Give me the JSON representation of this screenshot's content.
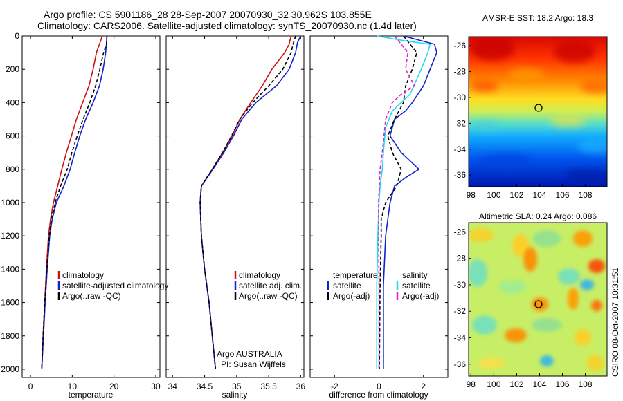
{
  "header": {
    "line1": "Argo profile: CS 5901186_28 28-Sep-2007 20070930_32 30.962S 103.855E",
    "line2": "Climatology: CARS2006. Satellite-adjusted climatology: synTS_20070930.nc (1.4d later)"
  },
  "credit": "CSIRO 08-Oct-2007 10:31:51",
  "colors": {
    "climatology": "#cc1111",
    "satellite": "#1122cc",
    "argo": "#000000",
    "salinity_satellite": "#22ddee",
    "salinity_argo": "#dd22cc"
  },
  "chart_data": [
    {
      "type": "line",
      "panel": "temperature",
      "xlabel": "temperature",
      "ylabel": "",
      "xlim": [
        -2,
        31
      ],
      "ylim": [
        0,
        2050
      ],
      "y_reversed": true,
      "xticks": [
        0,
        10,
        20,
        30
      ],
      "yticks": [
        0,
        200,
        400,
        600,
        800,
        1000,
        1200,
        1400,
        1600,
        1800,
        2000
      ],
      "legend": [
        "climatology",
        "satellite-adjusted climatology",
        "Argo(..raw -QC)"
      ],
      "legend_location": "lower-right",
      "series": [
        {
          "name": "climatology",
          "color_key": "climatology",
          "dash": "",
          "points": [
            [
              17.2,
              0
            ],
            [
              16.5,
              50
            ],
            [
              15.8,
              100
            ],
            [
              15.0,
              200
            ],
            [
              14.0,
              300
            ],
            [
              12.5,
              400
            ],
            [
              11.0,
              500
            ],
            [
              9.8,
              600
            ],
            [
              8.6,
              700
            ],
            [
              7.5,
              800
            ],
            [
              6.5,
              900
            ],
            [
              5.5,
              1000
            ],
            [
              4.8,
              1100
            ],
            [
              4.3,
              1200
            ],
            [
              3.8,
              1400
            ],
            [
              3.4,
              1600
            ],
            [
              3.0,
              1800
            ],
            [
              2.7,
              2000
            ]
          ]
        },
        {
          "name": "satellite-adjusted climatology",
          "color_key": "satellite",
          "dash": "",
          "points": [
            [
              18.3,
              0
            ],
            [
              18.2,
              50
            ],
            [
              18.0,
              100
            ],
            [
              17.4,
              200
            ],
            [
              16.5,
              300
            ],
            [
              15.0,
              400
            ],
            [
              13.2,
              500
            ],
            [
              11.8,
              600
            ],
            [
              10.6,
              700
            ],
            [
              9.5,
              800
            ],
            [
              8.0,
              900
            ],
            [
              6.2,
              1000
            ],
            [
              5.2,
              1100
            ],
            [
              4.6,
              1200
            ],
            [
              4.0,
              1400
            ],
            [
              3.5,
              1600
            ],
            [
              3.1,
              1800
            ],
            [
              2.7,
              2000
            ]
          ]
        },
        {
          "name": "Argo(..raw -QC)",
          "color_key": "argo",
          "dash": "5,3",
          "points": [
            [
              18.3,
              0
            ],
            [
              18.2,
              50
            ],
            [
              17.5,
              100
            ],
            [
              16.6,
              200
            ],
            [
              15.6,
              300
            ],
            [
              14.2,
              400
            ],
            [
              12.6,
              500
            ],
            [
              11.2,
              600
            ],
            [
              9.9,
              700
            ],
            [
              8.8,
              800
            ],
            [
              7.2,
              900
            ],
            [
              5.9,
              1000
            ],
            [
              5.0,
              1100
            ],
            [
              4.5,
              1200
            ],
            [
              3.9,
              1400
            ],
            [
              3.4,
              1600
            ],
            [
              3.0,
              1800
            ],
            [
              2.7,
              2000
            ]
          ]
        }
      ]
    },
    {
      "type": "line",
      "panel": "salinity",
      "xlabel": "salinity",
      "ylabel": "",
      "xlim": [
        33.9,
        36.05
      ],
      "ylim": [
        0,
        2050
      ],
      "y_reversed": true,
      "xticks": [
        34,
        34.5,
        35,
        35.5,
        36
      ],
      "legend": [
        "climatology",
        "satellite adj. clim.",
        "Argo(..raw -QC)"
      ],
      "legend_location": "lower-right",
      "annotation": [
        "Argo AUSTRALIA",
        "PI: Susan Wijffels"
      ],
      "series": [
        {
          "name": "climatology",
          "color_key": "climatology",
          "dash": "",
          "points": [
            [
              35.85,
              0
            ],
            [
              35.82,
              50
            ],
            [
              35.75,
              100
            ],
            [
              35.55,
              200
            ],
            [
              35.4,
              300
            ],
            [
              35.22,
              400
            ],
            [
              35.05,
              500
            ],
            [
              34.93,
              600
            ],
            [
              34.78,
              700
            ],
            [
              34.62,
              800
            ],
            [
              34.45,
              900
            ],
            [
              34.43,
              1000
            ],
            [
              34.45,
              1200
            ],
            [
              34.5,
              1400
            ],
            [
              34.57,
              1600
            ],
            [
              34.62,
              1800
            ],
            [
              34.67,
              2000
            ]
          ]
        },
        {
          "name": "satellite adj. clim.",
          "color_key": "satellite",
          "dash": "",
          "points": [
            [
              36.0,
              0
            ],
            [
              35.95,
              40
            ],
            [
              35.92,
              100
            ],
            [
              35.82,
              200
            ],
            [
              35.62,
              300
            ],
            [
              35.3,
              400
            ],
            [
              35.08,
              500
            ],
            [
              34.95,
              600
            ],
            [
              34.8,
              700
            ],
            [
              34.63,
              800
            ],
            [
              34.45,
              900
            ],
            [
              34.43,
              1000
            ],
            [
              34.45,
              1200
            ],
            [
              34.5,
              1400
            ],
            [
              34.57,
              1600
            ],
            [
              34.62,
              1800
            ],
            [
              34.67,
              2000
            ]
          ]
        },
        {
          "name": "Argo(..raw -QC)",
          "color_key": "argo",
          "dash": "5,3",
          "points": [
            [
              35.92,
              0
            ],
            [
              35.88,
              50
            ],
            [
              35.85,
              100
            ],
            [
              35.72,
              200
            ],
            [
              35.5,
              300
            ],
            [
              35.25,
              400
            ],
            [
              35.05,
              500
            ],
            [
              34.92,
              600
            ],
            [
              34.78,
              700
            ],
            [
              34.62,
              800
            ],
            [
              34.45,
              900
            ],
            [
              34.43,
              1000
            ],
            [
              34.45,
              1200
            ],
            [
              34.5,
              1400
            ],
            [
              34.57,
              1600
            ],
            [
              34.62,
              1800
            ],
            [
              34.67,
              2000
            ]
          ]
        }
      ]
    },
    {
      "type": "line",
      "panel": "difference",
      "xlabel": "difference from climatology",
      "ylabel": "",
      "xlim": [
        -3.1,
        3.1
      ],
      "ylim": [
        0,
        2050
      ],
      "y_reversed": true,
      "xticks": [
        -2,
        0,
        2
      ],
      "legend_left_title": "temperature",
      "legend_right_title": "salinity",
      "legend_left": [
        "satellite",
        "Argo(-adj)"
      ],
      "legend_right": [
        "satellite",
        "Argo(-adj)"
      ],
      "legend_location": "lower",
      "series": [
        {
          "name": "temperature satellite",
          "color_key": "satellite",
          "dash": "",
          "points": [
            [
              1.1,
              0
            ],
            [
              2.5,
              50
            ],
            [
              2.6,
              100
            ],
            [
              2.3,
              200
            ],
            [
              2.0,
              300
            ],
            [
              1.5,
              400
            ],
            [
              1.2,
              450
            ],
            [
              0.7,
              500
            ],
            [
              0.5,
              600
            ],
            [
              1.0,
              700
            ],
            [
              1.8,
              800
            ],
            [
              1.2,
              850
            ],
            [
              0.7,
              900
            ],
            [
              0.5,
              1000
            ],
            [
              0.3,
              1200
            ],
            [
              0.2,
              1500
            ],
            [
              0.2,
              2000
            ]
          ]
        },
        {
          "name": "temperature Argo(-adj)",
          "color_key": "argo",
          "dash": "5,3",
          "points": [
            [
              1.1,
              0
            ],
            [
              1.7,
              100
            ],
            [
              1.5,
              200
            ],
            [
              1.2,
              300
            ],
            [
              1.1,
              400
            ],
            [
              0.7,
              500
            ],
            [
              0.4,
              600
            ],
            [
              0.6,
              700
            ],
            [
              1.0,
              800
            ],
            [
              0.8,
              900
            ],
            [
              0.3,
              1000
            ],
            [
              0.1,
              1100
            ],
            [
              0.1,
              1200
            ],
            [
              0.05,
              1500
            ],
            [
              0.02,
              2000
            ]
          ]
        },
        {
          "name": "salinity satellite",
          "color_key": "salinity_satellite",
          "dash": "",
          "points": [
            [
              -0.1,
              0
            ],
            [
              1.2,
              30
            ],
            [
              2.3,
              50
            ],
            [
              2.2,
              100
            ],
            [
              1.9,
              200
            ],
            [
              1.4,
              350
            ],
            [
              1.0,
              400
            ],
            [
              0.6,
              450
            ],
            [
              0.3,
              550
            ],
            [
              0.2,
              700
            ],
            [
              0.15,
              800
            ],
            [
              0.05,
              900
            ],
            [
              0.0,
              1000
            ],
            [
              -0.05,
              1200
            ],
            [
              -0.1,
              1500
            ],
            [
              -0.1,
              1800
            ],
            [
              -0.1,
              2000
            ]
          ]
        },
        {
          "name": "salinity Argo(-adj)",
          "color_key": "salinity_argo",
          "dash": "5,3",
          "points": [
            [
              0.7,
              0
            ],
            [
              1.3,
              100
            ],
            [
              1.2,
              200
            ],
            [
              1.6,
              300
            ],
            [
              1.0,
              350
            ],
            [
              0.6,
              400
            ],
            [
              0.3,
              500
            ],
            [
              0.15,
              700
            ],
            [
              0.05,
              800
            ],
            [
              -0.02,
              1000
            ],
            [
              0.0,
              1500
            ],
            [
              0.0,
              2000
            ]
          ]
        }
      ]
    },
    {
      "type": "heatmap",
      "panel": "sst",
      "title": "AMSR-E SST: 18.2 Argo: 18.3",
      "xlim": [
        97.8,
        109.9
      ],
      "ylim": [
        -36.9,
        -25.3
      ],
      "xticks": [
        98,
        100,
        102,
        104,
        106,
        108
      ],
      "yticks": [
        -26,
        -28,
        -30,
        -32,
        -34,
        -36
      ],
      "marker": [
        103.855,
        -30.962
      ]
    },
    {
      "type": "heatmap",
      "panel": "sla",
      "title": "Altimetric SLA: 0.24 Argo: 0.086",
      "xlim": [
        97.8,
        109.9
      ],
      "ylim": [
        -36.9,
        -25.3
      ],
      "xticks": [
        98,
        100,
        102,
        104,
        106,
        108
      ],
      "yticks": [
        -26,
        -28,
        -30,
        -32,
        -34,
        -36
      ],
      "marker": [
        103.855,
        -30.962
      ]
    }
  ]
}
